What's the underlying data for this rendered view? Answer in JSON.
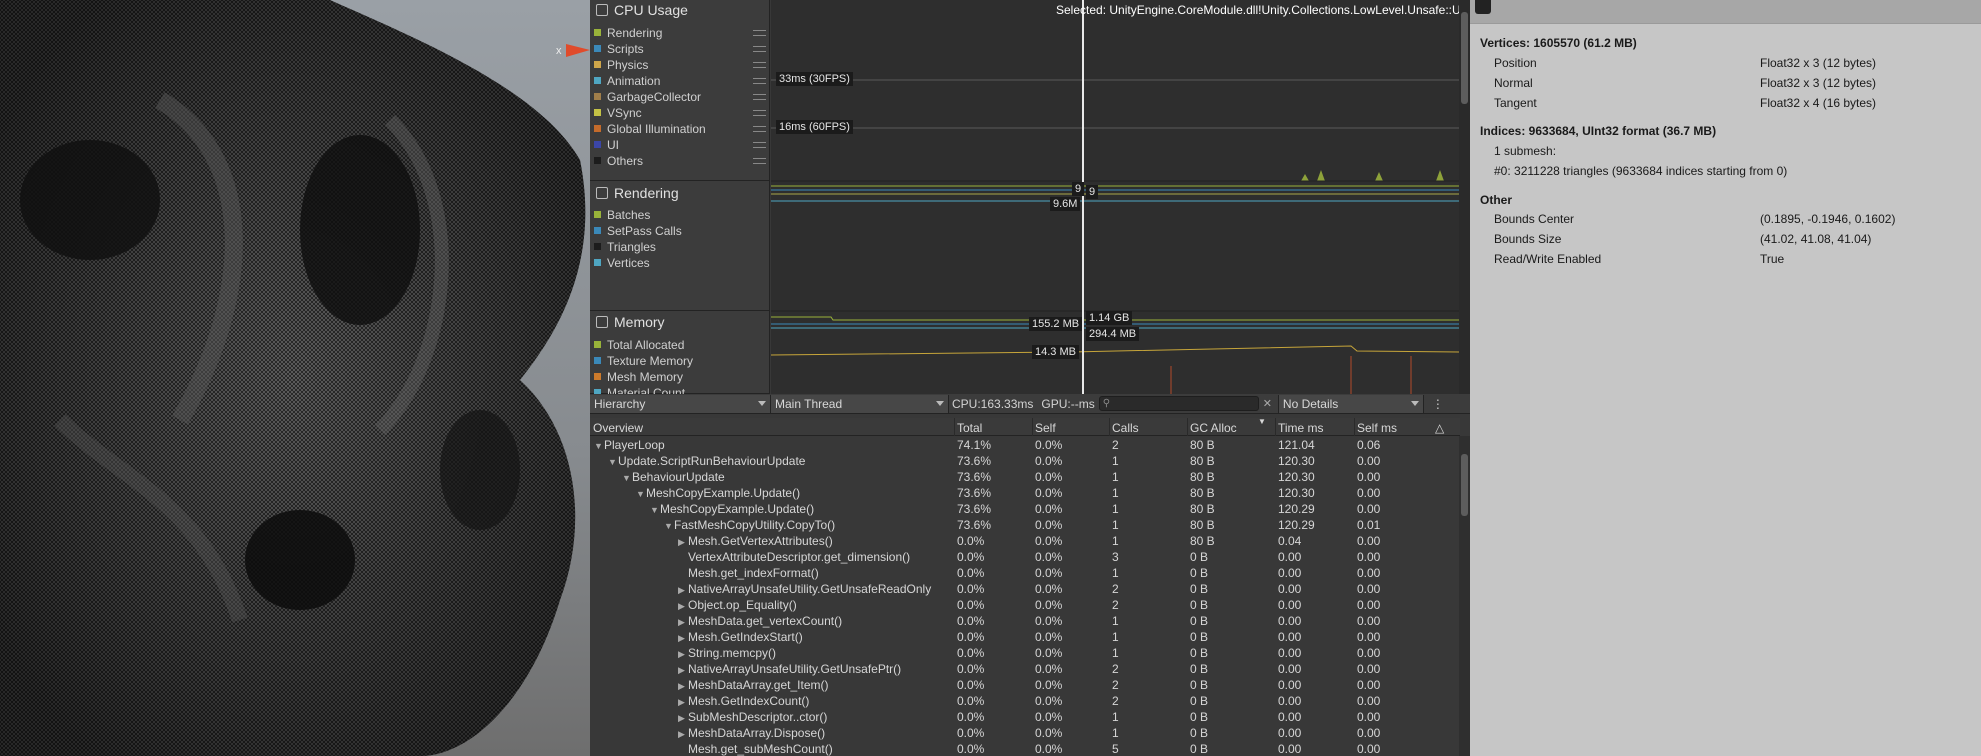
{
  "scene": {
    "gizmo_axis": "x"
  },
  "profiler": {
    "selected_text": "Selected: UnityEngine.CoreModule.dll!Unity.Collections.LowLevel.Unsafe::UnsafeUtility.MemCpy()",
    "cpu_area": {
      "title": "CPU Usage",
      "legend": [
        {
          "label": "Rendering",
          "color": "#99b33a"
        },
        {
          "label": "Scripts",
          "color": "#3b89b9"
        },
        {
          "label": "Physics",
          "color": "#cfa64a"
        },
        {
          "label": "Animation",
          "color": "#4fa6c2"
        },
        {
          "label": "GarbageCollector",
          "color": "#a07e4a"
        },
        {
          "label": "VSync",
          "color": "#c4c245"
        },
        {
          "label": "Global Illumination",
          "color": "#c46b2b"
        },
        {
          "label": "UI",
          "color": "#3b46a8"
        },
        {
          "label": "Others",
          "color": "#1c1c1c"
        }
      ],
      "markers": [
        "33ms (30FPS)",
        "16ms (60FPS)"
      ]
    },
    "rendering_area": {
      "title": "Rendering",
      "legend": [
        {
          "label": "Batches",
          "color": "#99b33a"
        },
        {
          "label": "SetPass Calls",
          "color": "#3b89b9"
        },
        {
          "label": "Triangles",
          "color": "#1c1c1c"
        },
        {
          "label": "Vertices",
          "color": "#4fa6c2"
        }
      ],
      "values": [
        "9",
        "9",
        "9.6M"
      ]
    },
    "memory_area": {
      "title": "Memory",
      "legend": [
        {
          "label": "Total Allocated",
          "color": "#99b33a"
        },
        {
          "label": "Texture Memory",
          "color": "#3b89b9"
        },
        {
          "label": "Mesh Memory",
          "color": "#cc7a2b"
        },
        {
          "label": "Material Count",
          "color": "#4fa6c2"
        }
      ],
      "values": [
        "155.2 MB",
        "1.14 GB",
        "294.4 MB",
        "14.3 MB"
      ]
    },
    "toolbar": {
      "view": "Hierarchy",
      "thread": "Main Thread",
      "cpu": "CPU:163.33ms",
      "gpu": "GPU:--ms",
      "search_placeholder": "",
      "details": "No Details"
    },
    "table": {
      "columns": [
        "Overview",
        "Total",
        "Self",
        "Calls",
        "GC Alloc",
        "Time ms",
        "Self ms"
      ],
      "rows": [
        {
          "name": "PlayerLoop",
          "indent": 0,
          "fold": "▼",
          "total": "74.1%",
          "self": "0.0%",
          "calls": "2",
          "gc": "80 B",
          "time": "121.04",
          "selfms": "0.06"
        },
        {
          "name": "Update.ScriptRunBehaviourUpdate",
          "indent": 1,
          "fold": "▼",
          "total": "73.6%",
          "self": "0.0%",
          "calls": "1",
          "gc": "80 B",
          "time": "120.30",
          "selfms": "0.00"
        },
        {
          "name": "BehaviourUpdate",
          "indent": 2,
          "fold": "▼",
          "total": "73.6%",
          "self": "0.0%",
          "calls": "1",
          "gc": "80 B",
          "time": "120.30",
          "selfms": "0.00"
        },
        {
          "name": "MeshCopyExample.Update()",
          "indent": 3,
          "fold": "▼",
          "total": "73.6%",
          "self": "0.0%",
          "calls": "1",
          "gc": "80 B",
          "time": "120.30",
          "selfms": "0.00"
        },
        {
          "name": "MeshCopyExample.Update()",
          "indent": 4,
          "fold": "▼",
          "total": "73.6%",
          "self": "0.0%",
          "calls": "1",
          "gc": "80 B",
          "time": "120.29",
          "selfms": "0.00"
        },
        {
          "name": "FastMeshCopyUtility.CopyTo()",
          "indent": 5,
          "fold": "▼",
          "total": "73.6%",
          "self": "0.0%",
          "calls": "1",
          "gc": "80 B",
          "time": "120.29",
          "selfms": "0.01"
        },
        {
          "name": "Mesh.GetVertexAttributes()",
          "indent": 6,
          "fold": "▶",
          "total": "0.0%",
          "self": "0.0%",
          "calls": "1",
          "gc": "80 B",
          "time": "0.04",
          "selfms": "0.00"
        },
        {
          "name": "VertexAttributeDescriptor.get_dimension()",
          "indent": 6,
          "fold": "",
          "total": "0.0%",
          "self": "0.0%",
          "calls": "3",
          "gc": "0 B",
          "time": "0.00",
          "selfms": "0.00"
        },
        {
          "name": "Mesh.get_indexFormat()",
          "indent": 6,
          "fold": "",
          "total": "0.0%",
          "self": "0.0%",
          "calls": "1",
          "gc": "0 B",
          "time": "0.00",
          "selfms": "0.00"
        },
        {
          "name": "NativeArrayUnsafeUtility.GetUnsafeReadOnly",
          "indent": 6,
          "fold": "▶",
          "total": "0.0%",
          "self": "0.0%",
          "calls": "2",
          "gc": "0 B",
          "time": "0.00",
          "selfms": "0.00"
        },
        {
          "name": "Object.op_Equality()",
          "indent": 6,
          "fold": "▶",
          "total": "0.0%",
          "self": "0.0%",
          "calls": "2",
          "gc": "0 B",
          "time": "0.00",
          "selfms": "0.00"
        },
        {
          "name": "MeshData.get_vertexCount()",
          "indent": 6,
          "fold": "▶",
          "total": "0.0%",
          "self": "0.0%",
          "calls": "1",
          "gc": "0 B",
          "time": "0.00",
          "selfms": "0.00"
        },
        {
          "name": "Mesh.GetIndexStart()",
          "indent": 6,
          "fold": "▶",
          "total": "0.0%",
          "self": "0.0%",
          "calls": "1",
          "gc": "0 B",
          "time": "0.00",
          "selfms": "0.00"
        },
        {
          "name": "String.memcpy()",
          "indent": 6,
          "fold": "▶",
          "total": "0.0%",
          "self": "0.0%",
          "calls": "1",
          "gc": "0 B",
          "time": "0.00",
          "selfms": "0.00"
        },
        {
          "name": "NativeArrayUnsafeUtility.GetUnsafePtr()",
          "indent": 6,
          "fold": "▶",
          "total": "0.0%",
          "self": "0.0%",
          "calls": "2",
          "gc": "0 B",
          "time": "0.00",
          "selfms": "0.00"
        },
        {
          "name": "MeshDataArray.get_Item()",
          "indent": 6,
          "fold": "▶",
          "total": "0.0%",
          "self": "0.0%",
          "calls": "2",
          "gc": "0 B",
          "time": "0.00",
          "selfms": "0.00"
        },
        {
          "name": "Mesh.GetIndexCount()",
          "indent": 6,
          "fold": "▶",
          "total": "0.0%",
          "self": "0.0%",
          "calls": "2",
          "gc": "0 B",
          "time": "0.00",
          "selfms": "0.00"
        },
        {
          "name": "SubMeshDescriptor..ctor()",
          "indent": 6,
          "fold": "▶",
          "total": "0.0%",
          "self": "0.0%",
          "calls": "1",
          "gc": "0 B",
          "time": "0.00",
          "selfms": "0.00"
        },
        {
          "name": "MeshDataArray.Dispose()",
          "indent": 6,
          "fold": "▶",
          "total": "0.0%",
          "self": "0.0%",
          "calls": "1",
          "gc": "0 B",
          "time": "0.00",
          "selfms": "0.00"
        },
        {
          "name": "Mesh.get_subMeshCount()",
          "indent": 6,
          "fold": "",
          "total": "0.0%",
          "self": "0.0%",
          "calls": "5",
          "gc": "0 B",
          "time": "0.00",
          "selfms": "0.00"
        }
      ]
    }
  },
  "inspector": {
    "vertices_header": "Vertices: 1605570 (61.2 MB)",
    "vertex_attrs": [
      {
        "name": "Position",
        "format": "Float32 x 3 (12 bytes)"
      },
      {
        "name": "Normal",
        "format": "Float32 x 3 (12 bytes)"
      },
      {
        "name": "Tangent",
        "format": "Float32 x 4 (16 bytes)"
      }
    ],
    "indices_header": "Indices: 9633684, UInt32 format (36.7 MB)",
    "submesh_count": "1 submesh:",
    "submesh_0": "#0: 3211228 triangles (9633684 indices starting from 0)",
    "other_header": "Other",
    "other": [
      {
        "name": "Bounds Center",
        "value": "(0.1895, -0.1946, 0.1602)"
      },
      {
        "name": "Bounds Size",
        "value": "(41.02, 41.08, 41.04)"
      },
      {
        "name": "Read/Write Enabled",
        "value": "True"
      }
    ]
  }
}
